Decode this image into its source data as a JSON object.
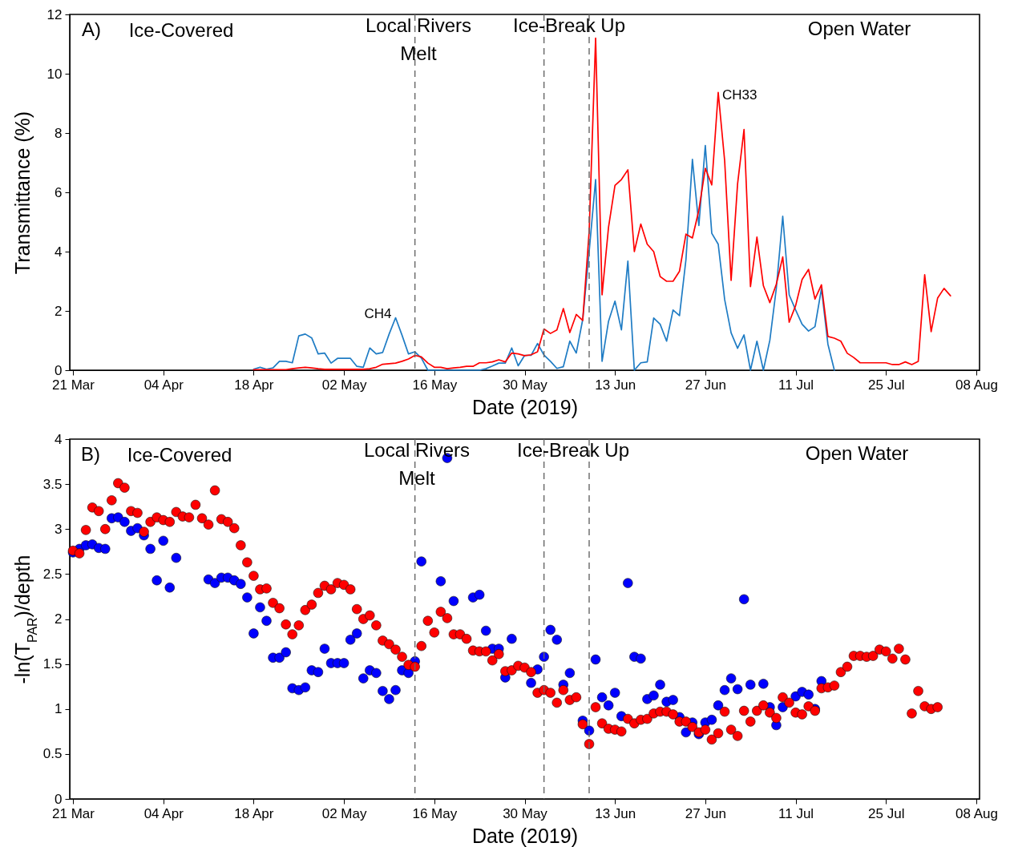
{
  "chart_data": [
    {
      "type": "line",
      "xlabel": "Date (2019)",
      "ylabel": "Transmittance (%)",
      "annotations": [
        "A)",
        "Ice-Covered",
        "Local Rivers\nMelt",
        "Ice-Break Up",
        "Open Water"
      ],
      "xlim": [
        "2019-03-20T12:00",
        "2019-08-08T12:00"
      ],
      "xticks": [
        {
          "value": "2019-03-21",
          "label": "21 Mar"
        },
        {
          "value": "2019-04-04",
          "label": "04 Apr"
        },
        {
          "value": "2019-04-18",
          "label": "18 Apr"
        },
        {
          "value": "2019-05-02",
          "label": "02 May"
        },
        {
          "value": "2019-05-16",
          "label": "16 May"
        },
        {
          "value": "2019-05-30",
          "label": "30 May"
        },
        {
          "value": "2019-06-13",
          "label": "13 Jun"
        },
        {
          "value": "2019-06-27",
          "label": "27 Jun"
        },
        {
          "value": "2019-07-11",
          "label": "11 Jul"
        },
        {
          "value": "2019-07-25",
          "label": "25 Jul"
        },
        {
          "value": "2019-08-08",
          "label": "08 Aug"
        }
      ],
      "ylim": [
        0,
        12
      ],
      "yticks": [
        0,
        2,
        4,
        6,
        8,
        10,
        12
      ],
      "ref_lines": [
        {
          "axis": "x",
          "value": "2019-05-13",
          "color": "#666666",
          "line_style": "dashed"
        },
        {
          "axis": "x",
          "value": "2019-06-02",
          "color": "#666666",
          "line_style": "dashed"
        },
        {
          "axis": "x",
          "value": "2019-06-09",
          "color": "#666666",
          "line_style": "dashed"
        }
      ],
      "x": [
        "2019-04-18",
        "2019-04-19",
        "2019-04-20",
        "2019-04-21",
        "2019-04-22",
        "2019-04-23",
        "2019-04-24",
        "2019-04-25",
        "2019-04-26",
        "2019-04-27",
        "2019-04-28",
        "2019-04-29",
        "2019-04-30",
        "2019-05-01",
        "2019-05-02",
        "2019-05-03",
        "2019-05-04",
        "2019-05-05",
        "2019-05-06",
        "2019-05-07",
        "2019-05-08",
        "2019-05-09",
        "2019-05-10",
        "2019-05-11",
        "2019-05-12",
        "2019-05-13",
        "2019-05-14",
        "2019-05-15",
        "2019-05-16",
        "2019-05-17",
        "2019-05-18",
        "2019-05-19",
        "2019-05-20",
        "2019-05-21",
        "2019-05-22",
        "2019-05-23",
        "2019-05-24",
        "2019-05-25",
        "2019-05-26",
        "2019-05-27",
        "2019-05-28",
        "2019-05-29",
        "2019-05-30",
        "2019-05-31",
        "2019-06-01",
        "2019-06-02",
        "2019-06-03",
        "2019-06-04",
        "2019-06-05",
        "2019-06-06",
        "2019-06-07",
        "2019-06-08",
        "2019-06-09",
        "2019-06-10",
        "2019-06-11",
        "2019-06-12",
        "2019-06-13",
        "2019-06-14",
        "2019-06-15",
        "2019-06-16",
        "2019-06-17",
        "2019-06-18",
        "2019-06-19",
        "2019-06-20",
        "2019-06-21",
        "2019-06-22",
        "2019-06-23",
        "2019-06-24",
        "2019-06-25",
        "2019-06-26",
        "2019-06-27",
        "2019-06-28",
        "2019-06-29",
        "2019-06-30",
        "2019-07-01",
        "2019-07-02",
        "2019-07-03",
        "2019-07-04",
        "2019-07-05",
        "2019-07-06",
        "2019-07-07",
        "2019-07-08",
        "2019-07-09",
        "2019-07-10",
        "2019-07-11",
        "2019-07-12",
        "2019-07-13",
        "2019-07-14",
        "2019-07-15",
        "2019-07-16",
        "2019-07-17",
        "2019-07-18",
        "2019-07-19",
        "2019-07-20",
        "2019-07-21",
        "2019-07-22",
        "2019-07-23",
        "2019-07-24",
        "2019-07-25",
        "2019-07-26",
        "2019-07-27",
        "2019-07-28",
        "2019-07-29",
        "2019-07-30",
        "2019-07-31",
        "2019-08-01",
        "2019-08-02",
        "2019-08-03",
        "2019-08-04"
      ],
      "series": [
        {
          "name": "CH4",
          "color": "#1f7cc4",
          "values": [
            0.03,
            0.1,
            0.03,
            0.08,
            0.3,
            0.3,
            0.25,
            1.16,
            1.22,
            1.09,
            0.55,
            0.58,
            0.24,
            0.4,
            0.4,
            0.4,
            0.13,
            0.1,
            0.75,
            0.55,
            0.6,
            1.22,
            1.77,
            1.18,
            0.55,
            0.62,
            0.41,
            0,
            0,
            0,
            0,
            0,
            0,
            0,
            0,
            0,
            0.05,
            0.14,
            0.24,
            0.24,
            0.75,
            0.15,
            0.5,
            0.5,
            0.9,
            0.51,
            0.3,
            0.06,
            0.12,
            0.98,
            0.58,
            1.71,
            4.0,
            6.43,
            0.3,
            1.65,
            2.33,
            1.36,
            3.68,
            0,
            0.25,
            0.28,
            1.76,
            1.55,
            0.98,
            2.03,
            1.84,
            3.73,
            7.11,
            4.88,
            7.58,
            4.62,
            4.25,
            2.38,
            1.26,
            0.74,
            1.19,
            0,
            0.98,
            0,
            1.01,
            2.75,
            5.19,
            2.54,
            2.03,
            1.55,
            1.32,
            1.47,
            2.75,
            0.88,
            0,
            null,
            null,
            null,
            null,
            null,
            null,
            null,
            null,
            null,
            null,
            null,
            null,
            null,
            null,
            null,
            null,
            null,
            null
          ]
        },
        {
          "name": "CH33",
          "color": "#ff0000",
          "values": [
            0.02,
            0.02,
            0.02,
            0.02,
            0.02,
            0.02,
            0.05,
            0.08,
            0.1,
            0.08,
            0.05,
            0.03,
            0.03,
            0.03,
            0.03,
            0.03,
            0.03,
            0.03,
            0.05,
            0.1,
            0.2,
            0.22,
            0.24,
            0.3,
            0.38,
            0.5,
            0.45,
            0.24,
            0.1,
            0.1,
            0.05,
            0.08,
            0.1,
            0.13,
            0.13,
            0.25,
            0.25,
            0.28,
            0.35,
            0.28,
            0.58,
            0.55,
            0.49,
            0.52,
            0.62,
            1.39,
            1.24,
            1.36,
            2.08,
            1.27,
            1.88,
            1.68,
            4.68,
            11.2,
            2.54,
            4.82,
            6.23,
            6.43,
            6.76,
            4.0,
            4.93,
            4.25,
            4.0,
            3.16,
            3.0,
            3.0,
            3.34,
            4.59,
            4.46,
            5.4,
            6.81,
            6.25,
            9.37,
            7.06,
            3.03,
            6.28,
            8.12,
            2.82,
            4.49,
            2.85,
            2.28,
            2.9,
            3.82,
            1.62,
            2.18,
            3.06,
            3.4,
            2.4,
            2.88,
            1.14,
            1.08,
            0.98,
            0.57,
            0.43,
            0.25,
            0.25,
            0.25,
            0.25,
            0.25,
            0.19,
            0.19,
            0.28,
            0.19,
            0.3,
            3.22,
            1.3,
            2.43,
            2.76,
            2.51
          ]
        }
      ]
    },
    {
      "type": "scatter",
      "xlabel": "Date (2019)",
      "ylabel": "-ln(T$_{PAR}$)/depth",
      "marker": "circle",
      "annotations": [
        "B)",
        "Ice-Covered",
        "Local Rivers\nMelt",
        "Ice-Break Up",
        "Open Water"
      ],
      "xlim": [
        "2019-03-20T12:00",
        "2019-08-08T12:00"
      ],
      "xticks": [
        {
          "value": "2019-03-21",
          "label": "21 Mar"
        },
        {
          "value": "2019-04-04",
          "label": "04 Apr"
        },
        {
          "value": "2019-04-18",
          "label": "18 Apr"
        },
        {
          "value": "2019-05-02",
          "label": "02 May"
        },
        {
          "value": "2019-05-16",
          "label": "16 May"
        },
        {
          "value": "2019-05-30",
          "label": "30 May"
        },
        {
          "value": "2019-06-13",
          "label": "13 Jun"
        },
        {
          "value": "2019-06-27",
          "label": "27 Jun"
        },
        {
          "value": "2019-07-11",
          "label": "11 Jul"
        },
        {
          "value": "2019-07-25",
          "label": "25 Jul"
        },
        {
          "value": "2019-08-08",
          "label": "08 Aug"
        }
      ],
      "ylim": [
        0,
        4
      ],
      "yticks": [
        0,
        0.5,
        1,
        1.5,
        2,
        2.5,
        3,
        3.5,
        4
      ],
      "ref_lines": [
        {
          "axis": "x",
          "value": "2019-05-13",
          "color": "#666666",
          "line_style": "dashed"
        },
        {
          "axis": "x",
          "value": "2019-06-02",
          "color": "#666666",
          "line_style": "dashed"
        },
        {
          "axis": "x",
          "value": "2019-06-09",
          "color": "#666666",
          "line_style": "dashed"
        }
      ],
      "x": [
        "2019-03-21",
        "2019-03-22",
        "2019-03-23",
        "2019-03-24",
        "2019-03-25",
        "2019-03-26",
        "2019-03-27",
        "2019-03-28",
        "2019-03-29",
        "2019-03-30",
        "2019-03-31",
        "2019-04-01",
        "2019-04-02",
        "2019-04-03",
        "2019-04-04",
        "2019-04-05",
        "2019-04-06",
        "2019-04-07",
        "2019-04-08",
        "2019-04-09",
        "2019-04-10",
        "2019-04-11",
        "2019-04-12",
        "2019-04-13",
        "2019-04-14",
        "2019-04-15",
        "2019-04-16",
        "2019-04-17",
        "2019-04-18",
        "2019-04-19",
        "2019-04-20",
        "2019-04-21",
        "2019-04-22",
        "2019-04-23",
        "2019-04-24",
        "2019-04-25",
        "2019-04-26",
        "2019-04-27",
        "2019-04-28",
        "2019-04-29",
        "2019-04-30",
        "2019-05-01",
        "2019-05-02",
        "2019-05-03",
        "2019-05-04",
        "2019-05-05",
        "2019-05-06",
        "2019-05-07",
        "2019-05-08",
        "2019-05-09",
        "2019-05-10",
        "2019-05-11",
        "2019-05-12",
        "2019-05-13",
        "2019-05-14",
        "2019-05-15",
        "2019-05-16",
        "2019-05-17",
        "2019-05-18",
        "2019-05-19",
        "2019-05-20",
        "2019-05-21",
        "2019-05-22",
        "2019-05-23",
        "2019-05-24",
        "2019-05-25",
        "2019-05-26",
        "2019-05-27",
        "2019-05-28",
        "2019-05-29",
        "2019-05-30",
        "2019-05-31",
        "2019-06-01",
        "2019-06-02",
        "2019-06-03",
        "2019-06-04",
        "2019-06-05",
        "2019-06-06",
        "2019-06-07",
        "2019-06-08",
        "2019-06-09",
        "2019-06-10",
        "2019-06-11",
        "2019-06-12",
        "2019-06-13",
        "2019-06-14",
        "2019-06-15",
        "2019-06-16",
        "2019-06-17",
        "2019-06-18",
        "2019-06-19",
        "2019-06-20",
        "2019-06-21",
        "2019-06-22",
        "2019-06-23",
        "2019-06-24",
        "2019-06-25",
        "2019-06-26",
        "2019-06-27",
        "2019-06-28",
        "2019-06-29",
        "2019-06-30",
        "2019-07-01",
        "2019-07-02",
        "2019-07-03",
        "2019-07-04",
        "2019-07-05",
        "2019-07-06",
        "2019-07-07",
        "2019-07-08",
        "2019-07-09",
        "2019-07-10",
        "2019-07-11",
        "2019-07-12",
        "2019-07-13",
        "2019-07-14",
        "2019-07-15",
        "2019-07-16",
        "2019-07-17",
        "2019-07-18",
        "2019-07-19",
        "2019-07-20",
        "2019-07-21",
        "2019-07-22",
        "2019-07-23",
        "2019-07-24",
        "2019-07-25",
        "2019-07-26",
        "2019-07-27",
        "2019-07-28",
        "2019-07-29",
        "2019-07-30",
        "2019-07-31",
        "2019-08-01",
        "2019-08-02"
      ],
      "series": [
        {
          "color": "#0000ff",
          "values": [
            2.74,
            2.78,
            2.82,
            2.83,
            2.79,
            2.78,
            3.12,
            3.13,
            3.08,
            2.98,
            3.01,
            2.93,
            2.78,
            2.43,
            2.87,
            2.35,
            2.68,
            null,
            null,
            null,
            null,
            2.44,
            2.4,
            2.46,
            2.46,
            2.43,
            2.39,
            2.24,
            1.84,
            2.13,
            1.98,
            1.57,
            1.57,
            1.63,
            1.23,
            1.21,
            1.24,
            1.43,
            1.41,
            1.67,
            1.51,
            1.51,
            1.51,
            1.77,
            1.84,
            1.34,
            1.43,
            1.4,
            1.2,
            1.11,
            1.21,
            1.43,
            1.4,
            1.53,
            2.64,
            null,
            null,
            2.42,
            3.79,
            2.2,
            null,
            null,
            2.24,
            2.27,
            1.87,
            1.67,
            1.67,
            1.35,
            1.78,
            null,
            null,
            1.29,
            1.44,
            1.58,
            1.88,
            1.77,
            1.27,
            1.4,
            null,
            0.87,
            0.76,
            1.55,
            1.13,
            1.04,
            1.18,
            0.92,
            2.4,
            1.58,
            1.56,
            1.11,
            1.15,
            1.27,
            1.08,
            1.1,
            0.91,
            0.74,
            0.85,
            0.72,
            0.85,
            0.88,
            1.04,
            1.21,
            1.34,
            1.22,
            2.22,
            1.27,
            null,
            1.28,
            1.02,
            0.82,
            1.02,
            null,
            1.14,
            1.19,
            1.16,
            1.0,
            1.31,
            null,
            null,
            null,
            null,
            null,
            null,
            null,
            null,
            null,
            null,
            null,
            null,
            null,
            null,
            null,
            null,
            null,
            null
          ]
        },
        {
          "color": "#ff0000",
          "values": [
            2.76,
            2.73,
            2.99,
            3.24,
            3.2,
            3.0,
            3.32,
            3.51,
            3.46,
            3.2,
            3.18,
            2.97,
            3.08,
            3.13,
            3.1,
            3.08,
            3.19,
            3.14,
            3.13,
            3.27,
            3.12,
            3.05,
            3.43,
            3.11,
            3.08,
            3.01,
            2.82,
            2.63,
            2.48,
            2.33,
            2.34,
            2.18,
            2.12,
            1.94,
            1.83,
            1.93,
            2.1,
            2.16,
            2.29,
            2.37,
            2.33,
            2.4,
            2.38,
            2.33,
            2.11,
            2.0,
            2.04,
            1.93,
            1.76,
            1.72,
            1.66,
            1.58,
            1.49,
            1.47,
            1.7,
            1.98,
            1.85,
            2.08,
            2.01,
            1.83,
            1.83,
            1.78,
            1.65,
            1.64,
            1.64,
            1.54,
            1.61,
            1.42,
            1.43,
            1.48,
            1.46,
            1.41,
            1.18,
            1.21,
            1.18,
            1.07,
            1.21,
            1.1,
            1.13,
            0.83,
            0.61,
            1.02,
            0.84,
            0.78,
            0.77,
            0.75,
            0.89,
            0.84,
            0.88,
            0.89,
            0.95,
            0.97,
            0.97,
            0.94,
            0.86,
            0.86,
            0.8,
            0.74,
            0.77,
            0.66,
            0.73,
            0.97,
            0.77,
            0.7,
            0.98,
            0.86,
            0.98,
            1.04,
            0.96,
            0.9,
            1.13,
            1.07,
            0.96,
            0.94,
            1.03,
            0.98,
            1.23,
            1.24,
            1.26,
            1.41,
            1.47,
            1.59,
            1.59,
            1.58,
            1.59,
            1.66,
            1.64,
            1.56,
            1.67,
            1.55,
            0.95,
            1.2,
            1.03,
            1.0,
            1.02
          ]
        }
      ]
    }
  ]
}
